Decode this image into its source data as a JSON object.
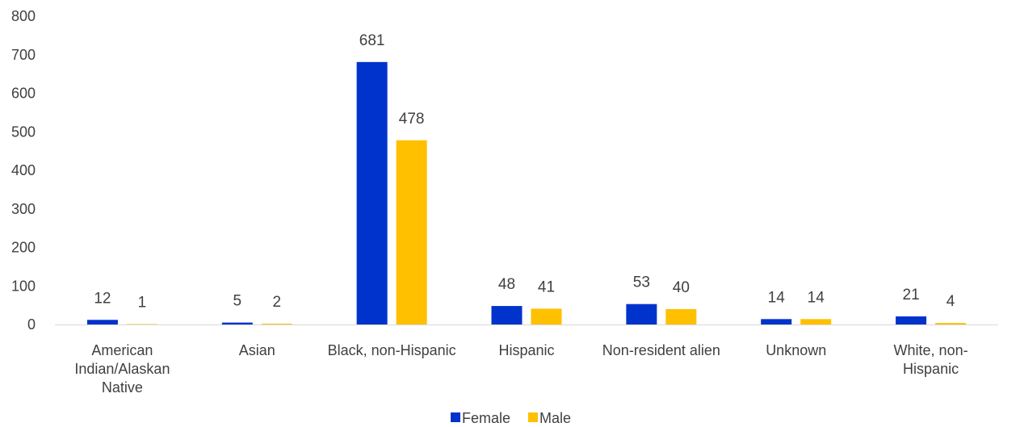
{
  "chart_data": {
    "type": "bar",
    "title": "",
    "xlabel": "",
    "ylabel": "",
    "ylim": [
      0,
      800
    ],
    "yticks": [
      0,
      100,
      200,
      300,
      400,
      500,
      600,
      700,
      800
    ],
    "grid": false,
    "legend_position": "bottom",
    "categories": [
      [
        "American",
        "Indian/Alaskan",
        "Native"
      ],
      [
        "Asian"
      ],
      [
        "Black, non-Hispanic"
      ],
      [
        "Hispanic"
      ],
      [
        "Non-resident alien"
      ],
      [
        "Unknown"
      ],
      [
        "White, non-",
        "Hispanic"
      ]
    ],
    "series": [
      {
        "name": "Female",
        "color": "#0033CC",
        "values": [
          12,
          5,
          681,
          48,
          53,
          14,
          21
        ]
      },
      {
        "name": "Male",
        "color": "#FFC000",
        "values": [
          1,
          2,
          478,
          41,
          40,
          14,
          4
        ]
      }
    ]
  }
}
